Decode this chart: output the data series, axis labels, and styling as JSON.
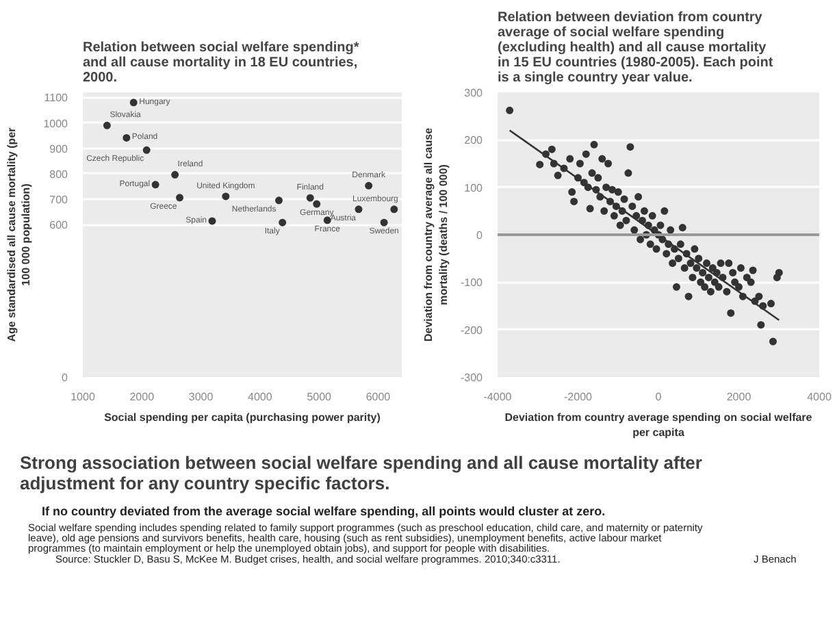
{
  "chart_data": [
    {
      "type": "scatter",
      "title": "Relation between social welfare spending* and all cause mortality in 18 EU countries, 2000.",
      "xlabel": "Social spending per capita (purchasing power parity)",
      "ylabel": "Age standardised all cause mortality (per 100 000 population)",
      "x": [
        1860,
        1410,
        1740,
        2080,
        2560,
        2230,
        2640,
        3420,
        3190,
        4320,
        4380,
        4960,
        4850,
        5140,
        5840,
        5670,
        6100,
        6270
      ],
      "values": [
        1080,
        990,
        941,
        893,
        796,
        757,
        706,
        711,
        614,
        695,
        608,
        681,
        705,
        617,
        753,
        660,
        608,
        660
      ],
      "color": "#333333",
      "marker": "circle",
      "grid": "y",
      "xlim": [
        1000,
        6400
      ],
      "ylim": [
        0,
        1120
      ],
      "xticks": [
        1000,
        2000,
        3000,
        4000,
        5000,
        6000
      ],
      "yticks": [
        0,
        600,
        700,
        800,
        900,
        1000,
        1100
      ],
      "annotations": [
        {
          "text": "Hungary",
          "x": 1860,
          "y": 1080
        },
        {
          "text": "Slovakia",
          "x": 1410,
          "y": 990
        },
        {
          "text": "Poland",
          "x": 1740,
          "y": 941
        },
        {
          "text": "Czech Republic",
          "x": 2080,
          "y": 893
        },
        {
          "text": "Ireland",
          "x": 2560,
          "y": 796
        },
        {
          "text": "Portugal",
          "x": 2230,
          "y": 757
        },
        {
          "text": "Greece",
          "x": 2640,
          "y": 706
        },
        {
          "text": "United Kingdom",
          "x": 3420,
          "y": 711
        },
        {
          "text": "Spain",
          "x": 3190,
          "y": 614
        },
        {
          "text": "Netherlands",
          "x": 4320,
          "y": 695
        },
        {
          "text": "Italy",
          "x": 4380,
          "y": 608
        },
        {
          "text": "Germany",
          "x": 4960,
          "y": 681
        },
        {
          "text": "Finland",
          "x": 4850,
          "y": 705
        },
        {
          "text": "France",
          "x": 5140,
          "y": 617
        },
        {
          "text": "Denmark",
          "x": 5840,
          "y": 753
        },
        {
          "text": "Austria",
          "x": 5670,
          "y": 660
        },
        {
          "text": "Sweden",
          "x": 6100,
          "y": 608
        },
        {
          "text": "Luxembourg",
          "x": 6270,
          "y": 660
        }
      ]
    },
    {
      "type": "scatter",
      "title": "Relation between deviation from country average of social welfare spending (excluding health) and all cause mortality in 15 EU countries (1980-2005).",
      "subtitle": "Each point is a single country year value.",
      "xlabel": "Deviation from country average spending on social welfare per capita",
      "ylabel": "Deviation from country average all cause mortality (deaths / 100 000)",
      "grid": "y",
      "xlim": [
        -4000,
        4000
      ],
      "ylim": [
        -300,
        300
      ],
      "xticks": [
        -4000,
        -2000,
        0,
        2000,
        4000
      ],
      "yticks": [
        -300,
        -200,
        -100,
        0,
        100,
        200,
        300
      ],
      "ref_lines": [
        {
          "axis": "y",
          "value": 0,
          "color": "#999999"
        }
      ],
      "series": [
        {
          "type": "scatter",
          "marker": "circle",
          "color": "#333333",
          "x": [
            -3700,
            -2950,
            -2800,
            -2650,
            -2600,
            -2500,
            -2350,
            -2200,
            -2150,
            -2100,
            -2000,
            -1950,
            -1850,
            -1800,
            -1750,
            -1700,
            -1650,
            -1600,
            -1550,
            -1500,
            -1450,
            -1400,
            -1350,
            -1300,
            -1250,
            -1200,
            -1150,
            -1100,
            -1050,
            -1000,
            -950,
            -900,
            -850,
            -800,
            -750,
            -700,
            -650,
            -600,
            -550,
            -500,
            -450,
            -400,
            -350,
            -300,
            -250,
            -200,
            -150,
            -100,
            -50,
            0,
            50,
            100,
            150,
            200,
            250,
            300,
            350,
            400,
            450,
            500,
            550,
            600,
            650,
            700,
            750,
            800,
            850,
            900,
            950,
            1000,
            1050,
            1100,
            1150,
            1200,
            1250,
            1300,
            1350,
            1400,
            1450,
            1500,
            1550,
            1600,
            1700,
            1750,
            1800,
            1850,
            1900,
            2000,
            2050,
            2100,
            2200,
            2300,
            2350,
            2400,
            2500,
            2550,
            2600,
            2800,
            2850,
            2950,
            3000
          ],
          "values": [
            262,
            148,
            170,
            180,
            150,
            125,
            140,
            160,
            90,
            70,
            120,
            150,
            110,
            170,
            100,
            55,
            130,
            190,
            95,
            120,
            80,
            160,
            50,
            100,
            150,
            70,
            95,
            40,
            60,
            90,
            20,
            50,
            75,
            30,
            130,
            185,
            60,
            10,
            40,
            80,
            -10,
            30,
            50,
            0,
            20,
            -20,
            40,
            10,
            -30,
            0,
            20,
            -10,
            50,
            -40,
            -20,
            10,
            -60,
            -30,
            -110,
            -50,
            -20,
            15,
            -70,
            -40,
            -130,
            -60,
            -90,
            -30,
            -70,
            -50,
            -100,
            -80,
            -110,
            -60,
            -90,
            -120,
            -70,
            -100,
            -80,
            -110,
            -60,
            -90,
            -120,
            -60,
            -165,
            -80,
            -100,
            -110,
            -70,
            -130,
            -90,
            -100,
            -75,
            -140,
            -130,
            -190,
            -150,
            -145,
            -225,
            -90,
            -80
          ]
        },
        {
          "type": "line",
          "color": "#333333",
          "x": [
            -3700,
            3000
          ],
          "values": [
            220,
            -180
          ]
        }
      ]
    },
    {
      "type": "other",
      "title": "Strong association between social welfare spending and all cause mortality after adjustment for any country specific factors.",
      "subtitle": "If no country deviated from the average social welfare spending, all points would cluster at zero.",
      "annotations": [
        "Social welfare spending includes spending related to family support programmes (such as preschool education, child care, and maternity or paternity leave), old age pensions and survivors benefits, health care, housing (such as rent subsidies), unemployment benefits, active labour market programmes (to maintain employment or help the unemployed obtain jobs), and support for people with disabilities.",
        "Source: Stuckler D, Basu S, McKee M. Budget crises, health, and social welfare programmes. 2010;340:c3311.",
        "J Benach"
      ]
    }
  ]
}
